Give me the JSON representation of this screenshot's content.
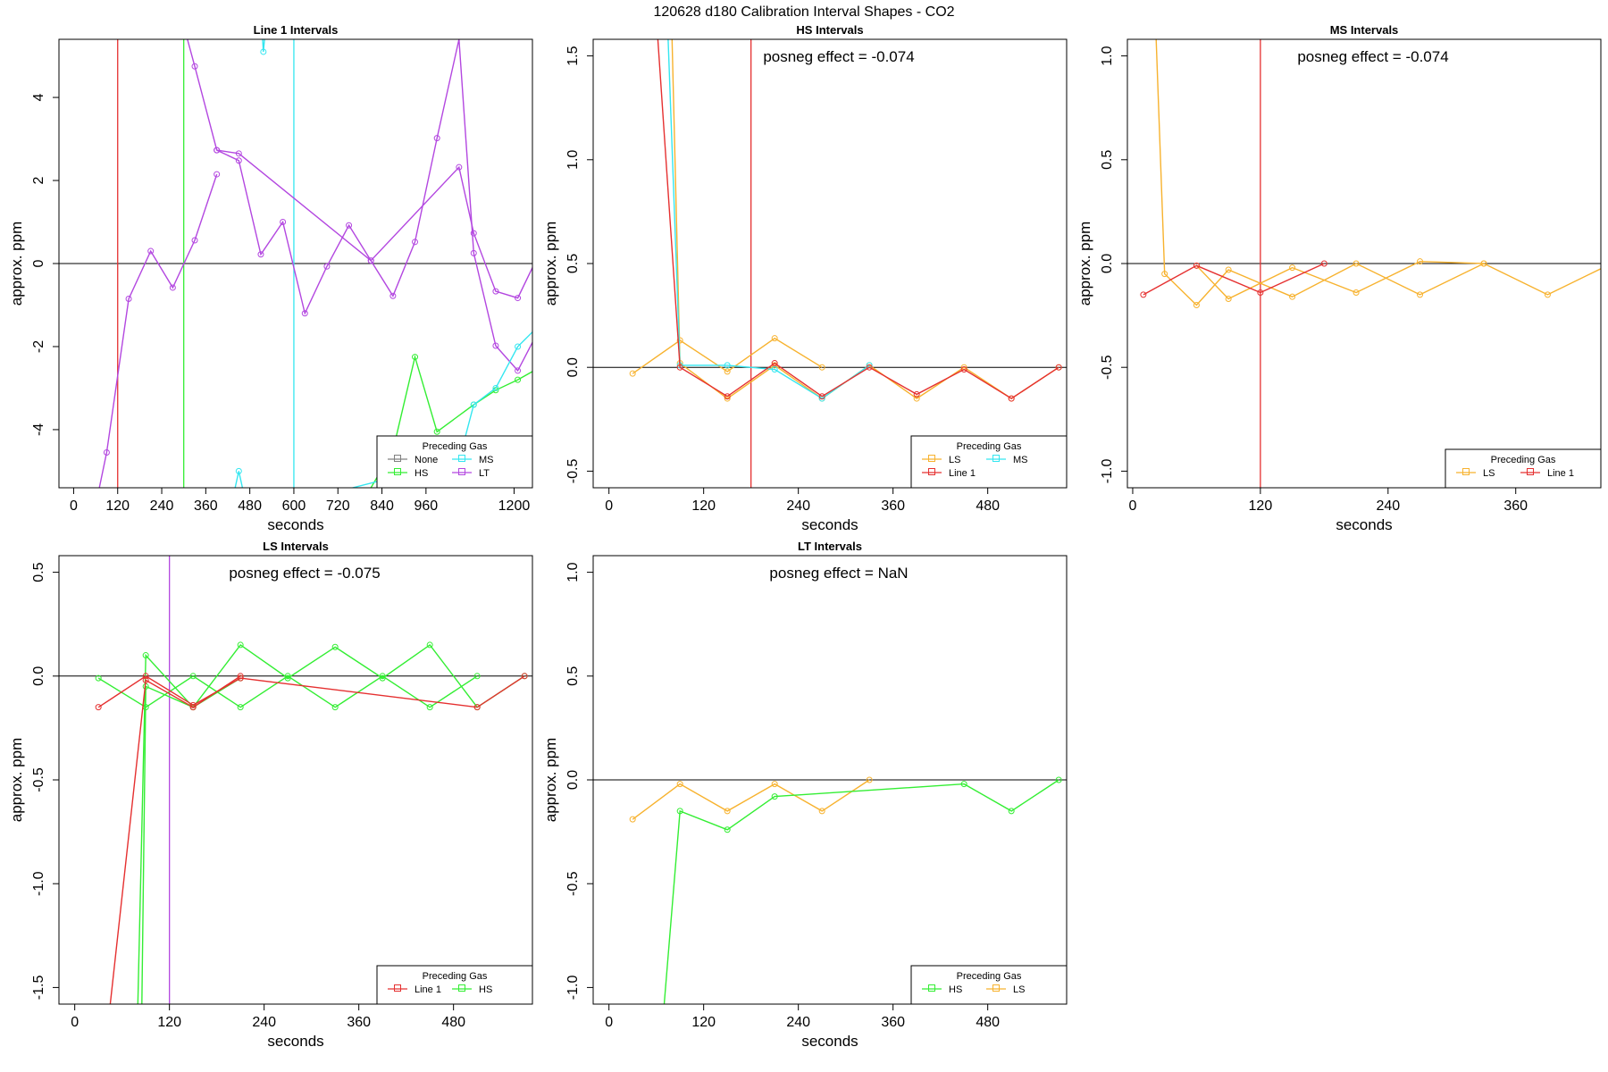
{
  "figure_title": "120628  d180   Calibration Interval Shapes - CO2",
  "colors": {
    "None": "#808080",
    "HS": "#33ee33",
    "MS": "#33e6f0",
    "LT": "#b347e0",
    "LS": "#f7b22e",
    "Line 1": "#e53030",
    "axis": "#000000"
  },
  "chart_data": [
    {
      "type": "line",
      "title": "Line 1 Intervals",
      "xlabel": "seconds",
      "ylabel": "approx. ppm",
      "xlim": [
        -40,
        1250
      ],
      "ylim": [
        -5.4,
        5.4
      ],
      "xticks": [
        0,
        120,
        240,
        360,
        480,
        600,
        720,
        840,
        960,
        1200
      ],
      "yticks": [
        -4,
        -2,
        0,
        2,
        4
      ],
      "hline": 0,
      "vlines": [
        {
          "x": 120,
          "color": "Line 1"
        },
        {
          "x": 300,
          "color": "HS"
        },
        {
          "x": 600,
          "color": "MS"
        }
      ],
      "annotation": "",
      "legend": {
        "title": "Preceding Gas",
        "entries": [
          "None",
          "MS",
          "HS",
          "LT"
        ],
        "columns": 2
      },
      "series": [
        {
          "name": "LT",
          "x": [
            70,
            90,
            150,
            210,
            270,
            330,
            390
          ],
          "y": [
            -5.4,
            -4.55,
            -0.85,
            0.3,
            -0.58,
            0.56,
            2.15
          ]
        },
        {
          "name": "LT",
          "x": [
            310,
            330,
            390,
            450,
            510,
            570,
            630,
            690,
            750,
            810,
            870,
            930,
            990,
            1050,
            1090,
            1150,
            1210,
            1250
          ],
          "y": [
            5.4,
            4.75,
            2.73,
            2.48,
            0.22,
            1.0,
            -1.2,
            -0.07,
            0.92,
            0.07,
            -0.78,
            0.52,
            3.02,
            5.4,
            0.25,
            -1.98,
            -2.58,
            -1.9
          ]
        },
        {
          "name": "LT",
          "x": [
            390,
            450,
            810,
            1050,
            1090,
            1150,
            1210,
            1250
          ],
          "y": [
            2.73,
            2.65,
            0.07,
            2.32,
            0.73,
            -0.67,
            -0.83,
            -0.1
          ]
        },
        {
          "name": "HS",
          "x": [
            810,
            870,
            930,
            990,
            1090,
            1150,
            1210,
            1250
          ],
          "y": [
            -5.4,
            -4.5,
            -2.25,
            -4.05,
            -3.4,
            -3.05,
            -2.8,
            -2.6
          ]
        },
        {
          "name": "MS",
          "x": [
            440,
            450,
            460
          ],
          "y": [
            -5.4,
            -5.0,
            -5.4
          ]
        },
        {
          "name": "MS",
          "x": [
            515,
            517,
            520
          ],
          "y": [
            5.4,
            5.1,
            5.4
          ]
        },
        {
          "name": "MS",
          "x": [
            760,
            1050,
            1090,
            1150,
            1210,
            1250
          ],
          "y": [
            -5.4,
            -4.75,
            -3.4,
            -3.0,
            -2.0,
            -1.65
          ]
        }
      ]
    },
    {
      "type": "line",
      "title": "HS Intervals",
      "xlabel": "seconds",
      "ylabel": "approx. ppm",
      "xlim": [
        -20,
        580
      ],
      "ylim": [
        -0.58,
        1.58
      ],
      "xticks": [
        0,
        120,
        240,
        360,
        480
      ],
      "yticks": [
        -0.5,
        0.0,
        0.5,
        1.0,
        1.5
      ],
      "hline": 0,
      "vlines": [
        {
          "x": 180,
          "color": "Line 1"
        }
      ],
      "annotation": "posneg effect = -0.074",
      "legend": {
        "title": "Preceding Gas",
        "entries": [
          "LS",
          "MS",
          "Line 1"
        ],
        "columns": 2
      },
      "series": [
        {
          "name": "LS",
          "x": [
            30,
            90,
            150,
            210,
            270
          ],
          "y": [
            -0.03,
            0.13,
            -0.02,
            0.14,
            0.0
          ]
        },
        {
          "name": "LS",
          "x": [
            80,
            90,
            150,
            210,
            270,
            330,
            390,
            450,
            510,
            570
          ],
          "y": [
            1.58,
            0.02,
            -0.15,
            0.01,
            -0.15,
            0.01,
            -0.15,
            0.0,
            -0.15,
            0.0
          ]
        },
        {
          "name": "MS",
          "x": [
            75,
            90,
            150,
            210,
            270,
            330
          ],
          "y": [
            1.58,
            0.01,
            0.01,
            -0.01,
            -0.15,
            0.01
          ]
        },
        {
          "name": "Line 1",
          "x": [
            62,
            90,
            150,
            210,
            270,
            330,
            390,
            450,
            510,
            570
          ],
          "y": [
            1.58,
            0.0,
            -0.14,
            0.02,
            -0.14,
            0.0,
            -0.13,
            -0.01,
            -0.15,
            0.0
          ]
        }
      ]
    },
    {
      "type": "line",
      "title": "MS Intervals",
      "xlabel": "seconds",
      "ylabel": "approx. ppm",
      "xlim": [
        -5,
        440
      ],
      "ylim": [
        -1.08,
        1.08
      ],
      "xticks": [
        0,
        120,
        240,
        360
      ],
      "yticks": [
        -1.0,
        -0.5,
        0.0,
        0.5,
        1.0
      ],
      "hline": 0,
      "vlines": [
        {
          "x": 120,
          "color": "Line 1"
        }
      ],
      "annotation": "posneg effect = -0.074",
      "legend": {
        "title": "Preceding Gas",
        "entries": [
          "LS",
          "Line 1"
        ],
        "columns": 2
      },
      "series": [
        {
          "name": "LS",
          "x": [
            22,
            30,
            60,
            90,
            150,
            210,
            270,
            330,
            390,
            450
          ],
          "y": [
            1.08,
            -0.05,
            -0.2,
            -0.03,
            -0.16,
            0.0,
            -0.15,
            0.0,
            -0.15,
            0.0
          ]
        },
        {
          "name": "LS",
          "x": [
            60,
            90,
            150,
            210,
            270,
            330
          ],
          "y": [
            -0.01,
            -0.17,
            -0.02,
            -0.14,
            0.01,
            0.0
          ]
        },
        {
          "name": "Line 1",
          "x": [
            10,
            60,
            120,
            180
          ],
          "y": [
            -0.15,
            -0.01,
            -0.14,
            0.0
          ]
        }
      ]
    },
    {
      "type": "line",
      "title": "LS Intervals",
      "xlabel": "seconds",
      "ylabel": "approx. ppm",
      "xlim": [
        -20,
        580
      ],
      "ylim": [
        -1.58,
        0.58
      ],
      "xticks": [
        0,
        120,
        240,
        360,
        480
      ],
      "yticks": [
        -1.5,
        -1.0,
        -0.5,
        0.0,
        0.5
      ],
      "hline": 0,
      "vlines": [
        {
          "x": 120,
          "color": "LT"
        }
      ],
      "annotation": "posneg effect = -0.075",
      "legend": {
        "title": "Preceding Gas",
        "entries": [
          "Line 1",
          "HS"
        ],
        "columns": 2
      },
      "series": [
        {
          "name": "HS",
          "x": [
            30,
            90,
            150,
            210,
            270,
            330,
            390,
            450,
            510
          ],
          "y": [
            -0.01,
            -0.15,
            0.0,
            -0.15,
            0.0,
            -0.15,
            0.0,
            -0.15,
            0.0
          ]
        },
        {
          "name": "HS",
          "x": [
            80,
            90,
            150,
            210,
            270,
            330,
            390,
            450,
            510,
            570
          ],
          "y": [
            -1.58,
            0.1,
            -0.15,
            0.15,
            -0.01,
            0.14,
            -0.01,
            0.15,
            -0.15,
            0.0
          ]
        },
        {
          "name": "HS",
          "x": [
            85,
            90,
            150,
            210
          ],
          "y": [
            -1.58,
            -0.05,
            -0.15,
            -0.01
          ]
        },
        {
          "name": "Line 1",
          "x": [
            30,
            90,
            150,
            210,
            510,
            570
          ],
          "y": [
            -0.15,
            0.0,
            -0.14,
            -0.01,
            -0.15,
            0.0
          ]
        },
        {
          "name": "Line 1",
          "x": [
            45,
            90,
            150,
            210
          ],
          "y": [
            -1.58,
            -0.02,
            -0.15,
            0.0
          ]
        }
      ]
    },
    {
      "type": "line",
      "title": "LT Intervals",
      "xlabel": "seconds",
      "ylabel": "approx. ppm",
      "xlim": [
        -20,
        580
      ],
      "ylim": [
        -1.08,
        1.08
      ],
      "xticks": [
        0,
        120,
        240,
        360,
        480
      ],
      "yticks": [
        -1.0,
        -0.5,
        0.0,
        0.5,
        1.0
      ],
      "hline": 0,
      "vlines": [],
      "annotation": "posneg effect = NaN",
      "legend": {
        "title": "Preceding Gas",
        "entries": [
          "HS",
          "LS"
        ],
        "columns": 2
      },
      "series": [
        {
          "name": "LS",
          "x": [
            30,
            90,
            150,
            210,
            270,
            330
          ],
          "y": [
            -0.19,
            -0.02,
            -0.15,
            -0.02,
            -0.15,
            0.0
          ]
        },
        {
          "name": "HS",
          "x": [
            70,
            90,
            150,
            210,
            450,
            510,
            570
          ],
          "y": [
            -1.08,
            -0.15,
            -0.24,
            -0.08,
            -0.02,
            -0.15,
            0.0
          ]
        }
      ]
    }
  ]
}
